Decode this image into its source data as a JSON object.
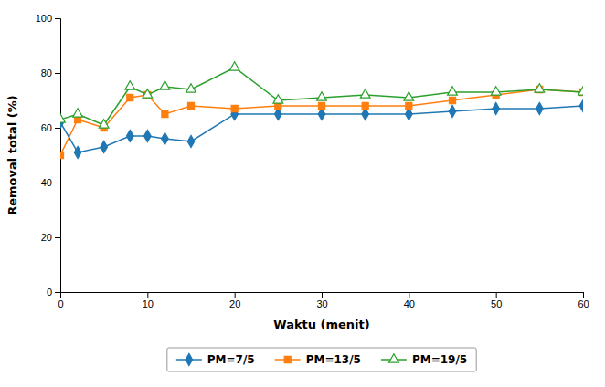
{
  "chart_data": {
    "type": "line",
    "xlabel": "Waktu (menit)",
    "ylabel": "Removal total (%)",
    "x": [
      0,
      2,
      5,
      8,
      10,
      12,
      15,
      20,
      25,
      30,
      35,
      40,
      45,
      50,
      55,
      60
    ],
    "series": [
      {
        "name": "PM=7/5",
        "marker": "diamond",
        "values": [
          62,
          51,
          53,
          57,
          57,
          56,
          55,
          65,
          65,
          65,
          65,
          65,
          66,
          67,
          67,
          68
        ]
      },
      {
        "name": "PM=13/5",
        "marker": "square",
        "values": [
          50,
          63,
          60,
          71,
          72,
          65,
          68,
          67,
          68,
          68,
          68,
          68,
          70,
          72,
          74,
          73
        ]
      },
      {
        "name": "PM=19/5",
        "marker": "triangle-open",
        "values": [
          63,
          65,
          61,
          75,
          72,
          75,
          74,
          82,
          70,
          71,
          72,
          71,
          73,
          73,
          74,
          73
        ]
      }
    ],
    "xlim": [
      0,
      60
    ],
    "ylim": [
      0,
      100
    ],
    "xticks": [
      0,
      10,
      20,
      30,
      40,
      50,
      60
    ],
    "yticks": [
      0,
      20,
      40,
      60,
      80,
      100
    ],
    "grid": false,
    "legend": "bottom"
  }
}
